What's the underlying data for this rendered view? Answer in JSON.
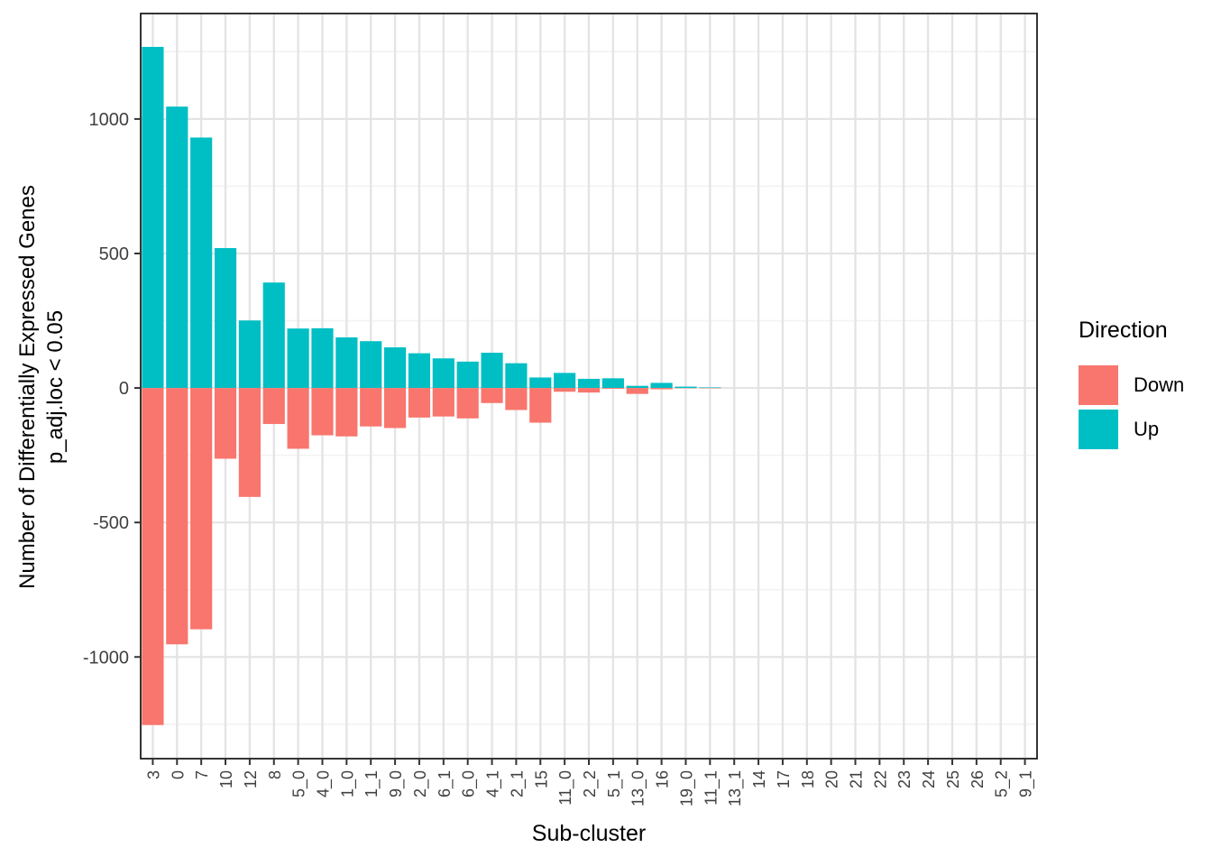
{
  "chart_data": {
    "type": "bar",
    "variant": "diverging-vertical",
    "title": "",
    "xlabel": "Sub-cluster",
    "ylabel_line1": "Number of Differentially Expressed Genes",
    "ylabel_line2": "p_adj.loc < 0.05",
    "categories": [
      "3",
      "0",
      "7",
      "10",
      "12",
      "8",
      "5_0",
      "4_0",
      "1_0",
      "1_1",
      "9_0",
      "2_0",
      "6_1",
      "6_0",
      "4_1",
      "2_1",
      "15",
      "11_0",
      "2_2",
      "5_1",
      "13_0",
      "16",
      "19_0",
      "11_1",
      "13_1",
      "14",
      "17",
      "18",
      "20",
      "21",
      "22",
      "23",
      "24",
      "25",
      "26",
      "5_2",
      "9_1"
    ],
    "series": [
      {
        "name": "Up",
        "color": "#00BFC4",
        "values": [
          1268,
          1046,
          931,
          520,
          251,
          392,
          221,
          222,
          188,
          174,
          151,
          129,
          110,
          98,
          131,
          92,
          39,
          56,
          34,
          36,
          8,
          19,
          5,
          2,
          0,
          0,
          0,
          0,
          0,
          0,
          0,
          0,
          0,
          0,
          0,
          0,
          0
        ]
      },
      {
        "name": "Down",
        "color": "#F8766D",
        "values": [
          -1253,
          -953,
          -897,
          -263,
          -405,
          -134,
          -226,
          -176,
          -180,
          -143,
          -149,
          -110,
          -106,
          -113,
          -56,
          -82,
          -129,
          -14,
          -17,
          -3,
          -22,
          -5,
          -1,
          -1,
          0,
          0,
          0,
          0,
          0,
          0,
          0,
          0,
          0,
          0,
          0,
          0,
          0
        ]
      }
    ],
    "ylim": [
      -1378,
      1392
    ],
    "y_major_ticks": [
      1000,
      500,
      0,
      -500,
      -1000
    ],
    "y_minor_ticks": [
      1250,
      750,
      250,
      -250,
      -750,
      -1250
    ],
    "grid": true,
    "legend": {
      "title": "Direction",
      "position": "right",
      "items": [
        {
          "label": "Down",
          "color": "#F8766D"
        },
        {
          "label": "Up",
          "color": "#00BFC4"
        }
      ]
    },
    "style": {
      "up_color": "#00BFC4",
      "down_color": "#F8766D",
      "grid_major": "#E4E4E4",
      "grid_minor": "#F2F2F2",
      "panel_border": "#1F1F1F",
      "tick_mark": "#333333",
      "tick_text": "#404040",
      "title_text": "#000000",
      "background": "#FFFFFF"
    }
  }
}
